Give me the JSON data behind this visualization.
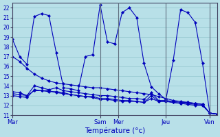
{
  "background_color": "#b8e0e8",
  "grid_color": "#90c4cc",
  "line_color": "#0000bb",
  "marker_color": "#0000bb",
  "xlabel": "Température (°c)",
  "ylim": [
    11,
    22.5
  ],
  "yticks": [
    11,
    12,
    13,
    14,
    15,
    16,
    17,
    18,
    19,
    20,
    21,
    22
  ],
  "day_labels": [
    "Mar",
    "Sam",
    "Mer",
    "Jeu",
    "Ven"
  ],
  "xlim": [
    0,
    28
  ],
  "day_x": [
    0,
    12,
    14.5,
    21,
    27
  ],
  "vline_x": [
    12,
    14.5,
    21,
    27
  ],
  "series": {
    "main": [
      18.8,
      17.0,
      16.2,
      21.1,
      21.4,
      21.2,
      17.4,
      13.8,
      13.7,
      13.5,
      17.0,
      17.2,
      22.3,
      18.5,
      18.3,
      21.5,
      22.0,
      21.0,
      16.3,
      13.9,
      13.2,
      12.6,
      16.6,
      21.8,
      21.5,
      20.5,
      16.3,
      11.2,
      11.1
    ],
    "flat1": [
      13.4,
      13.3,
      13.0,
      14.0,
      13.8,
      13.6,
      13.8,
      13.5,
      13.4,
      13.3,
      13.2,
      13.1,
      13.0,
      13.0,
      12.9,
      12.8,
      12.7,
      12.7,
      12.6,
      13.3,
      12.5,
      12.5,
      12.4,
      12.3,
      12.3,
      12.2,
      12.1,
      11.2,
      11.1
    ],
    "flat2": [
      13.0,
      12.9,
      12.8,
      13.6,
      13.5,
      13.4,
      13.4,
      13.3,
      13.1,
      13.0,
      12.9,
      12.8,
      12.6,
      12.6,
      12.5,
      12.4,
      12.4,
      12.4,
      12.3,
      12.7,
      12.4,
      12.4,
      12.3,
      12.2,
      12.1,
      12.0,
      12.0,
      11.2,
      11.1
    ],
    "flat3": [
      13.2,
      13.1,
      13.0,
      13.5,
      13.5,
      13.5,
      13.3,
      13.2,
      13.1,
      13.0,
      12.9,
      12.9,
      12.7,
      12.7,
      12.6,
      12.5,
      12.5,
      12.4,
      12.3,
      13.0,
      12.4,
      12.4,
      12.3,
      12.2,
      12.2,
      12.1,
      12.0,
      11.2,
      11.1
    ],
    "decline": [
      17.0,
      16.5,
      15.8,
      15.2,
      14.8,
      14.5,
      14.3,
      14.2,
      14.1,
      14.0,
      13.9,
      13.8,
      13.8,
      13.7,
      13.6,
      13.5,
      13.4,
      13.3,
      13.2,
      13.1,
      12.9,
      12.7,
      12.5,
      12.4,
      12.3,
      12.2,
      12.1,
      11.2,
      11.1
    ]
  },
  "n_points": 29
}
